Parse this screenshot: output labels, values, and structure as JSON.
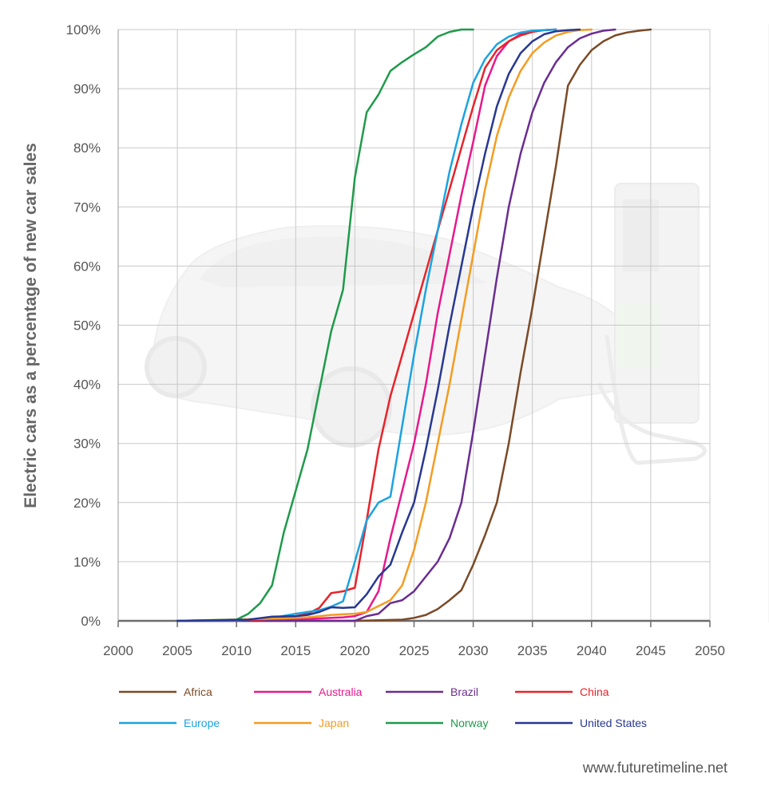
{
  "credit": "www.futuretimeline.net",
  "chart_data": {
    "type": "line",
    "title": "",
    "xlabel": "",
    "ylabel": "Electric cars as a percentage of new car sales",
    "xlim": [
      2000,
      2050
    ],
    "ylim": [
      0,
      100
    ],
    "x_ticks": [
      2000,
      2005,
      2010,
      2015,
      2020,
      2025,
      2030,
      2035,
      2040,
      2045,
      2050
    ],
    "x_tick_labels": [
      "2000",
      "2005",
      "2010",
      "2015",
      "2020",
      "2025",
      "2030",
      "2035",
      "2040",
      "2045",
      "2050"
    ],
    "y_ticks": [
      0,
      10,
      20,
      30,
      40,
      50,
      60,
      70,
      80,
      90,
      100
    ],
    "y_tick_labels": [
      "0%",
      "10%",
      "20%",
      "30%",
      "40%",
      "50%",
      "60%",
      "70%",
      "80%",
      "90%",
      "100%"
    ],
    "grid": true,
    "legend_position": "bottom",
    "series": [
      {
        "name": "Africa",
        "color": "#7a4a26",
        "x": [
          2005,
          2020,
          2024,
          2025,
          2026,
          2027,
          2028,
          2029,
          2030,
          2031,
          2032,
          2033,
          2034,
          2035,
          2036,
          2037,
          2038,
          2039,
          2040,
          2041,
          2042,
          2043,
          2044,
          2045
        ],
        "y": [
          0,
          0,
          0.2,
          0.5,
          1,
          2,
          3.5,
          5.2,
          9.5,
          14.5,
          20,
          30,
          42,
          53,
          65,
          77,
          90.5,
          94,
          96.5,
          98,
          99,
          99.5,
          99.8,
          100
        ]
      },
      {
        "name": "Australia",
        "color": "#e6198c",
        "x": [
          2005,
          2014,
          2017,
          2018,
          2019,
          2020,
          2021,
          2022,
          2023,
          2024,
          2025,
          2026,
          2027,
          2028,
          2029,
          2030,
          2031,
          2032,
          2033,
          2034,
          2035,
          2036,
          2037
        ],
        "y": [
          0,
          0.2,
          0.4,
          0.5,
          0.6,
          0.8,
          1.5,
          5,
          14,
          22,
          30,
          40,
          52,
          62,
          72,
          81,
          90.5,
          95.5,
          98,
          99.2,
          99.7,
          99.9,
          100
        ]
      },
      {
        "name": "Brazil",
        "color": "#6a2d91",
        "x": [
          2005,
          2020,
          2021,
          2022,
          2023,
          2024,
          2025,
          2026,
          2027,
          2028,
          2029,
          2030,
          2031,
          2032,
          2033,
          2034,
          2035,
          2036,
          2037,
          2038,
          2039,
          2040,
          2041,
          2042
        ],
        "y": [
          0,
          0,
          0.8,
          1.2,
          3,
          3.5,
          5,
          7.5,
          10,
          14,
          20,
          32,
          45,
          58,
          70,
          79,
          86,
          91,
          94.5,
          97,
          98.5,
          99.3,
          99.8,
          100
        ]
      },
      {
        "name": "China",
        "color": "#e8232a",
        "x": [
          2005,
          2012,
          2014,
          2015,
          2016,
          2017,
          2018,
          2019,
          2020,
          2021,
          2022,
          2023,
          2024,
          2025,
          2026,
          2027,
          2028,
          2029,
          2030,
          2031,
          2032,
          2033,
          2034,
          2035,
          2036,
          2037
        ],
        "y": [
          0,
          0.2,
          0.5,
          0.8,
          1.2,
          2.2,
          4.7,
          5,
          5.6,
          17,
          29,
          38,
          45,
          52,
          59,
          66,
          73,
          80,
          87,
          93.5,
          96.5,
          98,
          99,
          99.6,
          99.9,
          100
        ]
      },
      {
        "name": "Europe",
        "color": "#1ba3e0",
        "x": [
          2005,
          2010,
          2013,
          2015,
          2016,
          2017,
          2018,
          2019,
          2020,
          2021,
          2022,
          2023,
          2024,
          2025,
          2026,
          2027,
          2028,
          2029,
          2030,
          2031,
          2032,
          2033,
          2034,
          2035,
          2036,
          2037
        ],
        "y": [
          0,
          0.1,
          0.5,
          1.2,
          1.5,
          1.8,
          2.4,
          3.3,
          10,
          17,
          20,
          21,
          33,
          45,
          56,
          66,
          76,
          84,
          91,
          95,
          97.5,
          98.8,
          99.5,
          99.8,
          99.9,
          100
        ]
      },
      {
        "name": "Japan",
        "color": "#f39c21",
        "x": [
          2005,
          2014,
          2015,
          2016,
          2017,
          2018,
          2019,
          2020,
          2021,
          2022,
          2023,
          2024,
          2025,
          2026,
          2027,
          2028,
          2029,
          2030,
          2031,
          2032,
          2033,
          2034,
          2035,
          2036,
          2037,
          2038,
          2039,
          2040
        ],
        "y": [
          0,
          0.4,
          0.5,
          0.6,
          0.8,
          1,
          1.1,
          1.2,
          1.5,
          2.5,
          3.5,
          6,
          12,
          20,
          30,
          40,
          51,
          62,
          73,
          82,
          88.5,
          93,
          96,
          97.8,
          99,
          99.6,
          99.9,
          100
        ]
      },
      {
        "name": "Norway",
        "color": "#1f9a4a",
        "x": [
          2005,
          2010,
          2011,
          2012,
          2013,
          2014,
          2015,
          2016,
          2017,
          2018,
          2019,
          2020,
          2021,
          2022,
          2023,
          2024,
          2025,
          2026,
          2027,
          2028,
          2029,
          2030
        ],
        "y": [
          0,
          0.2,
          1.2,
          3,
          6,
          15,
          22,
          29,
          39,
          49,
          56,
          75,
          86,
          89,
          93,
          94.5,
          95.8,
          97,
          98.8,
          99.6,
          100,
          100
        ]
      },
      {
        "name": "United States",
        "color": "#283891",
        "x": [
          2005,
          2011,
          2013,
          2015,
          2016,
          2017,
          2018,
          2019,
          2020,
          2021,
          2022,
          2023,
          2024,
          2025,
          2026,
          2027,
          2028,
          2029,
          2030,
          2031,
          2032,
          2033,
          2034,
          2035,
          2036,
          2037,
          2038,
          2039
        ],
        "y": [
          0,
          0.2,
          0.7,
          0.8,
          1,
          1.5,
          2.3,
          2.2,
          2.3,
          4.5,
          7.5,
          9.5,
          15,
          20,
          29,
          39,
          50,
          60,
          70,
          79,
          87,
          92.5,
          96,
          98,
          99.2,
          99.7,
          99.9,
          100
        ]
      }
    ]
  }
}
